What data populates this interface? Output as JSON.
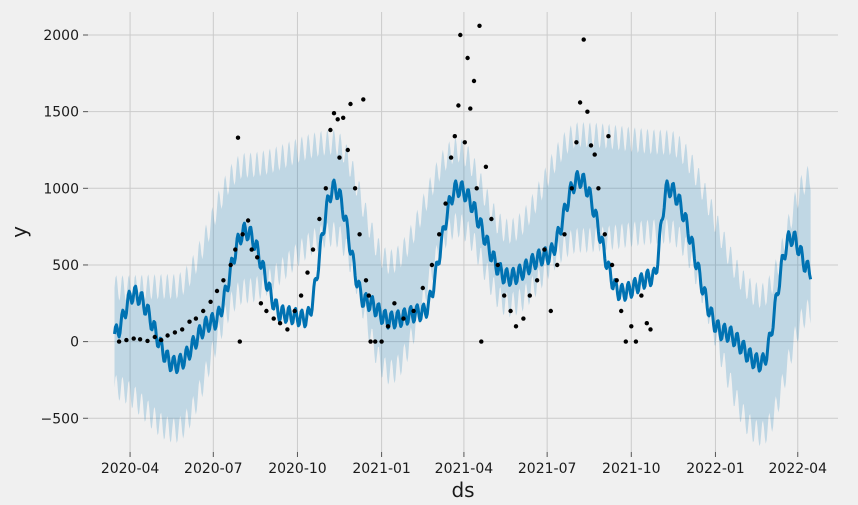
{
  "chart_data": {
    "type": "line",
    "title": "",
    "xlabel": "ds",
    "ylabel": "y",
    "x_start": "2020-03-15",
    "x_end": "2022-04-15",
    "xlim": [
      "2020-02-15",
      "2022-05-15"
    ],
    "ylim": [
      -720,
      2150
    ],
    "x_ticks": [
      {
        "date": "2020-04-01",
        "label": "2020-04"
      },
      {
        "date": "2020-07-01",
        "label": "2020-07"
      },
      {
        "date": "2020-10-01",
        "label": "2020-10"
      },
      {
        "date": "2021-01-01",
        "label": "2021-01"
      },
      {
        "date": "2021-04-01",
        "label": "2021-04"
      },
      {
        "date": "2021-07-01",
        "label": "2021-07"
      },
      {
        "date": "2021-10-01",
        "label": "2021-10"
      },
      {
        "date": "2022-01-01",
        "label": "2022-01"
      },
      {
        "date": "2022-04-01",
        "label": "2022-04"
      }
    ],
    "y_ticks": [
      {
        "value": -500,
        "label": "−500"
      },
      {
        "value": 0,
        "label": "0"
      },
      {
        "value": 500,
        "label": "500"
      },
      {
        "value": 1000,
        "label": "1000"
      },
      {
        "value": 1500,
        "label": "1500"
      },
      {
        "value": 2000,
        "label": "2000"
      }
    ],
    "grid": true,
    "series": [
      {
        "kind": "forecast",
        "color": "#0072B2",
        "x": [
          "2020-03-15",
          "2020-04-05",
          "2020-05-20",
          "2020-07-01",
          "2020-08-05",
          "2020-09-15",
          "2020-10-10",
          "2020-11-10",
          "2020-12-15",
          "2021-01-10",
          "2021-02-15",
          "2021-03-25",
          "2021-05-20",
          "2021-07-01",
          "2021-08-05",
          "2021-09-20",
          "2021-10-25",
          "2021-11-10",
          "2022-01-10",
          "2022-02-20",
          "2022-03-25",
          "2022-04-15"
        ],
        "values": [
          50,
          310,
          -150,
          130,
          720,
          180,
          150,
          1000,
          260,
          140,
          190,
          1000,
          420,
          560,
          1060,
          320,
          420,
          1000,
          60,
          -140,
          680,
          460
        ]
      },
      {
        "kind": "uncertainty",
        "color": "#0072B2",
        "opacity": 0.2,
        "x": [
          "2020-03-15",
          "2020-05-20",
          "2020-08-05",
          "2020-11-10",
          "2021-01-10",
          "2021-03-25",
          "2021-05-20",
          "2021-08-05",
          "2021-11-10",
          "2022-02-20",
          "2022-04-15"
        ],
        "lower": [
          -300,
          -580,
          330,
          700,
          -200,
          760,
          240,
          660,
          720,
          -600,
          200
        ],
        "upper": [
          350,
          360,
          1150,
          1300,
          520,
          1250,
          720,
          1350,
          1300,
          300,
          1070
        ]
      },
      {
        "kind": "observed",
        "color": "#000000",
        "points": [
          [
            "2020-03-20",
            0
          ],
          [
            "2020-03-28",
            10
          ],
          [
            "2020-04-05",
            20
          ],
          [
            "2020-04-12",
            15
          ],
          [
            "2020-04-20",
            5
          ],
          [
            "2020-04-28",
            30
          ],
          [
            "2020-05-05",
            10
          ],
          [
            "2020-05-12",
            40
          ],
          [
            "2020-05-20",
            60
          ],
          [
            "2020-05-28",
            80
          ],
          [
            "2020-06-05",
            130
          ],
          [
            "2020-06-12",
            150
          ],
          [
            "2020-06-20",
            200
          ],
          [
            "2020-06-28",
            260
          ],
          [
            "2020-07-05",
            330
          ],
          [
            "2020-07-12",
            400
          ],
          [
            "2020-07-20",
            500
          ],
          [
            "2020-07-25",
            600
          ],
          [
            "2020-07-28",
            1330
          ],
          [
            "2020-07-30",
            0
          ],
          [
            "2020-08-02",
            700
          ],
          [
            "2020-08-08",
            790
          ],
          [
            "2020-08-12",
            600
          ],
          [
            "2020-08-18",
            550
          ],
          [
            "2020-08-22",
            250
          ],
          [
            "2020-08-28",
            200
          ],
          [
            "2020-09-05",
            150
          ],
          [
            "2020-09-12",
            120
          ],
          [
            "2020-09-20",
            80
          ],
          [
            "2020-09-28",
            200
          ],
          [
            "2020-10-05",
            300
          ],
          [
            "2020-10-12",
            450
          ],
          [
            "2020-10-18",
            600
          ],
          [
            "2020-10-25",
            800
          ],
          [
            "2020-11-01",
            1000
          ],
          [
            "2020-11-06",
            1380
          ],
          [
            "2020-11-10",
            1490
          ],
          [
            "2020-11-14",
            1450
          ],
          [
            "2020-11-16",
            1200
          ],
          [
            "2020-11-20",
            1460
          ],
          [
            "2020-11-25",
            1250
          ],
          [
            "2020-11-28",
            1550
          ],
          [
            "2020-12-03",
            1000
          ],
          [
            "2020-12-08",
            700
          ],
          [
            "2020-12-12",
            1580
          ],
          [
            "2020-12-15",
            400
          ],
          [
            "2020-12-18",
            300
          ],
          [
            "2020-12-20",
            0
          ],
          [
            "2020-12-25",
            0
          ],
          [
            "2021-01-01",
            0
          ],
          [
            "2021-01-08",
            100
          ],
          [
            "2021-01-15",
            250
          ],
          [
            "2021-01-25",
            150
          ],
          [
            "2021-02-05",
            200
          ],
          [
            "2021-02-15",
            350
          ],
          [
            "2021-02-25",
            500
          ],
          [
            "2021-03-05",
            700
          ],
          [
            "2021-03-12",
            900
          ],
          [
            "2021-03-18",
            1200
          ],
          [
            "2021-03-22",
            1340
          ],
          [
            "2021-03-26",
            1540
          ],
          [
            "2021-03-28",
            2000
          ],
          [
            "2021-04-02",
            1300
          ],
          [
            "2021-04-05",
            1850
          ],
          [
            "2021-04-08",
            1520
          ],
          [
            "2021-04-12",
            1700
          ],
          [
            "2021-04-15",
            1000
          ],
          [
            "2021-04-18",
            2060
          ],
          [
            "2021-04-20",
            0
          ],
          [
            "2021-04-25",
            1140
          ],
          [
            "2021-05-01",
            800
          ],
          [
            "2021-05-08",
            500
          ],
          [
            "2021-05-15",
            300
          ],
          [
            "2021-05-22",
            200
          ],
          [
            "2021-05-28",
            100
          ],
          [
            "2021-06-05",
            150
          ],
          [
            "2021-06-12",
            300
          ],
          [
            "2021-06-20",
            400
          ],
          [
            "2021-06-28",
            600
          ],
          [
            "2021-07-05",
            200
          ],
          [
            "2021-07-12",
            500
          ],
          [
            "2021-07-20",
            700
          ],
          [
            "2021-07-28",
            1000
          ],
          [
            "2021-08-02",
            1300
          ],
          [
            "2021-08-06",
            1560
          ],
          [
            "2021-08-10",
            1970
          ],
          [
            "2021-08-14",
            1500
          ],
          [
            "2021-08-18",
            1280
          ],
          [
            "2021-08-22",
            1220
          ],
          [
            "2021-08-26",
            1000
          ],
          [
            "2021-09-02",
            700
          ],
          [
            "2021-09-06",
            1340
          ],
          [
            "2021-09-10",
            500
          ],
          [
            "2021-09-15",
            400
          ],
          [
            "2021-09-20",
            200
          ],
          [
            "2021-09-25",
            0
          ],
          [
            "2021-10-01",
            100
          ],
          [
            "2021-10-06",
            0
          ],
          [
            "2021-10-12",
            300
          ],
          [
            "2021-10-18",
            120
          ],
          [
            "2021-10-22",
            80
          ]
        ]
      }
    ]
  }
}
